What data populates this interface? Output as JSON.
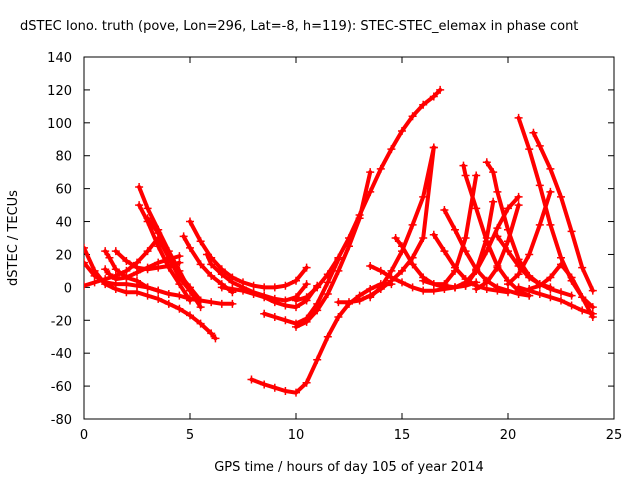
{
  "chart_data": {
    "type": "scatter",
    "title": "dSTEC Iono. truth (pove, Lon=296, Lat=-8, h=119): STEC-STEC_elemax in phase cont",
    "xlabel": "GPS time / hours of day 105 of year 2014",
    "ylabel": "dSTEC  / TECUs",
    "xlim": [
      0,
      25
    ],
    "ylim": [
      -80,
      140
    ],
    "xticks": [
      0,
      5,
      10,
      15,
      20,
      25
    ],
    "yticks": [
      -80,
      -60,
      -40,
      -20,
      0,
      20,
      40,
      60,
      80,
      100,
      120,
      140
    ],
    "grid": false,
    "marker": "+",
    "color": "#ff0000",
    "series": [
      {
        "x": [
          0.0,
          0.5,
          1.0,
          1.5,
          2.0,
          2.5,
          3.0,
          3.5,
          4.0,
          4.5,
          5.0,
          5.5,
          6.0,
          6.2
        ],
        "values": [
          24,
          10,
          2,
          -1,
          -3,
          -3,
          -5,
          -7,
          -10,
          -13,
          -17,
          -22,
          -28,
          -31
        ]
      },
      {
        "x": [
          0.0,
          0.5,
          1.0,
          1.5,
          2.0,
          2.5,
          3.0,
          3.5,
          4.0,
          4.5,
          5.0,
          5.5,
          6.0,
          6.5,
          7.0
        ],
        "values": [
          15,
          7,
          3,
          2,
          2,
          1,
          0,
          -2,
          -4,
          -5,
          -7,
          -8,
          -9,
          -10,
          -10
        ]
      },
      {
        "x": [
          0.0,
          0.5,
          1.0,
          1.5,
          2.0,
          2.5,
          3.0,
          3.5,
          4.0,
          4.5,
          5.0,
          5.5
        ],
        "values": [
          1,
          3,
          5,
          7,
          10,
          15,
          22,
          30,
          18,
          8,
          0,
          -8
        ]
      },
      {
        "x": [
          1.0,
          1.2,
          1.5,
          2.0,
          2.5,
          3.0,
          3.5
        ],
        "values": [
          22,
          18,
          11,
          6,
          4,
          0,
          -2
        ]
      },
      {
        "x": [
          1.0,
          1.2,
          1.5,
          2.0,
          2.5,
          3.0,
          3.5,
          4.0,
          4.5
        ],
        "values": [
          11,
          8,
          5,
          6,
          9,
          12,
          15,
          17,
          19
        ]
      },
      {
        "x": [
          1.5,
          2.0,
          2.5,
          3.0,
          3.5,
          4.0,
          4.5
        ],
        "values": [
          22,
          16,
          12,
          11,
          12,
          13,
          15
        ]
      },
      {
        "x": [
          2.6,
          3.0,
          3.5,
          4.0,
          4.5,
          5.0,
          5.5
        ],
        "values": [
          61,
          48,
          35,
          22,
          10,
          -2,
          -12
        ]
      },
      {
        "x": [
          2.6,
          3.0,
          3.5,
          4.0,
          4.5,
          5.0
        ],
        "values": [
          50,
          40,
          25,
          12,
          2,
          -8
        ]
      },
      {
        "x": [
          3.0,
          3.5,
          4.0,
          4.5,
          5.0,
          5.5
        ],
        "values": [
          42,
          33,
          18,
          6,
          -2,
          -8
        ]
      },
      {
        "x": [
          4.7,
          5.0,
          5.5,
          6.0,
          6.5,
          7.0
        ],
        "values": [
          31,
          24,
          14,
          7,
          2,
          -3
        ]
      },
      {
        "x": [
          5.0,
          5.5,
          6.0,
          6.5,
          7.0,
          7.5,
          8.0,
          8.5,
          9.0,
          9.5,
          10.0,
          10.5
        ],
        "values": [
          40,
          28,
          18,
          11,
          6,
          3,
          1,
          0,
          0,
          1,
          4,
          12
        ]
      },
      {
        "x": [
          5.8,
          6.0,
          6.5,
          7.0,
          7.5,
          8.0,
          8.5,
          9.0,
          9.5,
          10.0,
          10.5
        ],
        "values": [
          20,
          14,
          8,
          3,
          0,
          -3,
          -5,
          -7,
          -8,
          -6,
          2
        ]
      },
      {
        "x": [
          6.5,
          7.0,
          7.5,
          8.0,
          8.5,
          9.0,
          9.5,
          10.0,
          10.5,
          11.0
        ],
        "values": [
          0,
          -1,
          -2,
          -4,
          -6,
          -9,
          -11,
          -12,
          -8,
          1
        ]
      },
      {
        "x": [
          8.5,
          9.0,
          9.5,
          10.0,
          10.5,
          11.0,
          11.5,
          12.0
        ],
        "values": [
          -16,
          -18,
          -20,
          -22,
          -19,
          -10,
          3,
          17
        ]
      },
      {
        "x": [
          7.9,
          8.5,
          9.0,
          9.5,
          10.0,
          10.5,
          11.0,
          11.5,
          12.0,
          12.5,
          13.0,
          13.5,
          14.0,
          14.5
        ],
        "values": [
          -56,
          -59,
          -61,
          -63,
          -64,
          -58,
          -44,
          -30,
          -18,
          -10,
          -5,
          -1,
          2,
          2
        ]
      },
      {
        "x": [
          10.0,
          10.5,
          11.0,
          11.5,
          12.0,
          12.5,
          13.0,
          13.5
        ],
        "values": [
          -24,
          -21,
          -14,
          -4,
          10,
          25,
          42,
          70
        ]
      },
      {
        "x": [
          10.0,
          10.5,
          11.0,
          11.5,
          12.0,
          12.5,
          13.0,
          13.5,
          14.0,
          14.5,
          15.0,
          15.5,
          16.0,
          16.5,
          16.8
        ],
        "values": [
          -8,
          -6,
          0,
          8,
          18,
          30,
          44,
          58,
          72,
          84,
          95,
          104,
          111,
          116,
          120
        ]
      },
      {
        "x": [
          12.0,
          12.5,
          13.0,
          13.5,
          14.0,
          14.5,
          15.0,
          15.5,
          16.0,
          16.5
        ],
        "values": [
          -9,
          -9,
          -8,
          -5,
          -1,
          4,
          10,
          18,
          30,
          85
        ]
      },
      {
        "x": [
          13.5,
          14.0,
          14.5,
          15.0,
          15.5,
          16.0,
          16.5
        ],
        "values": [
          -6,
          0,
          10,
          22,
          38,
          55,
          85
        ]
      },
      {
        "x": [
          13.5,
          14.0,
          14.5,
          15.0,
          15.5,
          16.0,
          16.5,
          17.0,
          17.5,
          18.0
        ],
        "values": [
          13,
          10,
          6,
          3,
          0,
          -2,
          -2,
          -1,
          0,
          2
        ]
      },
      {
        "x": [
          14.7,
          15.0,
          15.5,
          16.0,
          16.5,
          17.0,
          17.5,
          18.0,
          18.5
        ],
        "values": [
          30,
          25,
          14,
          6,
          2,
          0,
          0,
          1,
          3
        ]
      },
      {
        "x": [
          16.5,
          17.0,
          17.5,
          18.0,
          18.5,
          19.0,
          19.5,
          20.0
        ],
        "values": [
          32,
          22,
          12,
          5,
          1,
          -1,
          -2,
          -3
        ]
      },
      {
        "x": [
          17.0,
          17.5,
          18.0,
          18.5,
          19.0,
          19.5,
          20.0,
          20.5,
          21.0
        ],
        "values": [
          47,
          35,
          22,
          11,
          4,
          0,
          -2,
          -4,
          -5
        ]
      },
      {
        "x": [
          17.9,
          18.0,
          18.5,
          19.0,
          19.5,
          20.0,
          20.5,
          21.0
        ],
        "values": [
          74,
          68,
          48,
          28,
          13,
          4,
          -2,
          -5
        ]
      },
      {
        "x": [
          17.0,
          17.5,
          18.0,
          18.5,
          19.0,
          19.5,
          20.0,
          20.5
        ],
        "values": [
          1,
          0,
          3,
          10,
          22,
          36,
          48,
          55
        ]
      },
      {
        "x": [
          16.0,
          16.5,
          17.0,
          17.5,
          18.0,
          18.5
        ],
        "values": [
          4,
          2,
          2,
          10,
          30,
          68
        ]
      },
      {
        "x": [
          18.0,
          18.5,
          19.0,
          19.3
        ],
        "values": [
          1,
          10,
          30,
          52
        ]
      },
      {
        "x": [
          19.0,
          19.3,
          19.5,
          20.0,
          20.5,
          21.0,
          21.5,
          22.0
        ],
        "values": [
          76,
          70,
          58,
          35,
          17,
          7,
          2,
          0
        ]
      },
      {
        "x": [
          19.5,
          20.0,
          20.5,
          21.0,
          21.5,
          22.0,
          22.5,
          23.0
        ],
        "values": [
          31,
          22,
          13,
          6,
          2,
          -1,
          -3,
          -5
        ]
      },
      {
        "x": [
          18.5,
          19.0,
          19.5,
          20.0,
          20.5
        ],
        "values": [
          -1,
          3,
          12,
          28,
          50
        ]
      },
      {
        "x": [
          20.5,
          21.0,
          21.5,
          22.0,
          22.5,
          23.0,
          23.5,
          24.0
        ],
        "values": [
          103,
          84,
          62,
          38,
          18,
          4,
          -6,
          -12
        ]
      },
      {
        "x": [
          21.2,
          21.5,
          22.0,
          22.5,
          23.0,
          23.5,
          24.0
        ],
        "values": [
          94,
          86,
          72,
          55,
          34,
          12,
          -2
        ]
      },
      {
        "x": [
          20.0,
          20.5,
          21.0,
          21.5,
          22.0
        ],
        "values": [
          2,
          8,
          20,
          38,
          58
        ]
      },
      {
        "x": [
          21.0,
          21.5,
          22.0,
          22.5,
          23.0,
          23.5,
          24.0
        ],
        "values": [
          -1,
          1,
          6,
          14,
          6,
          -6,
          -18
        ]
      },
      {
        "x": [
          20.5,
          21.0,
          21.5,
          22.0,
          22.5,
          23.0,
          23.5,
          24.0
        ],
        "values": [
          0,
          -2,
          -4,
          -6,
          -8,
          -11,
          -14,
          -16
        ]
      }
    ]
  }
}
